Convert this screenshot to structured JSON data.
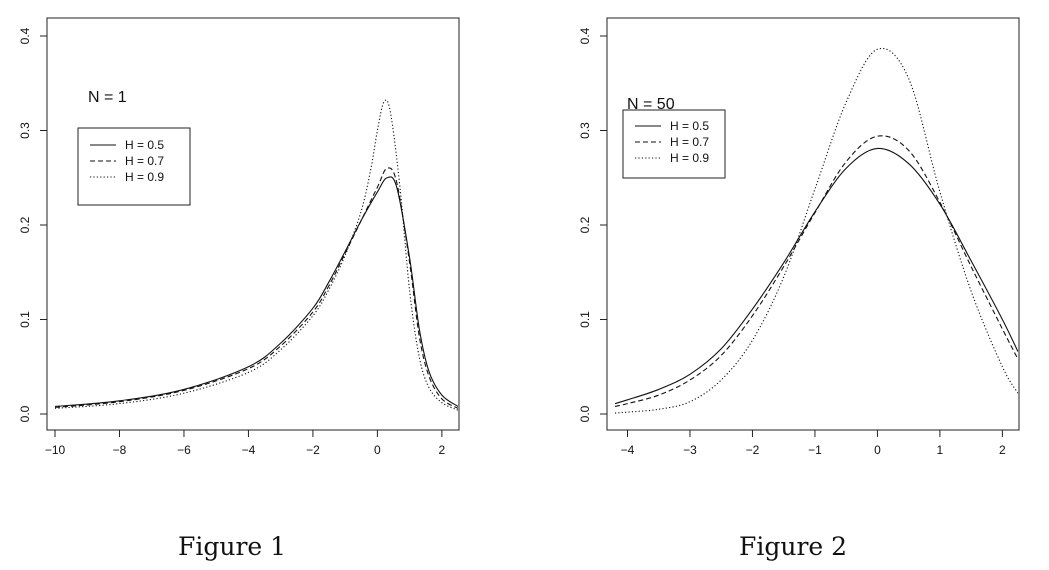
{
  "chart_data": [
    {
      "type": "line",
      "caption": "Figure 1",
      "annotation": "N = 1",
      "xlim": [
        -10,
        2.5
      ],
      "ylim": [
        0,
        0.4
      ],
      "xticks": [
        -10,
        -8,
        -6,
        -4,
        -2,
        0,
        2
      ],
      "yticks": [
        0.0,
        0.1,
        0.2,
        0.3,
        0.4
      ],
      "xtick_labels": [
        "−10",
        "−8",
        "−6",
        "−4",
        "−2",
        "0",
        "2"
      ],
      "ytick_labels": [
        "0.0",
        "0.1",
        "0.2",
        "0.3",
        "0.4"
      ],
      "legend_position": "top-left",
      "series": [
        {
          "name": "H = 0.5",
          "style": "solid",
          "x": [
            -10,
            -8,
            -6,
            -4,
            -3,
            -2,
            -1.5,
            -1,
            -0.5,
            0,
            0.3,
            0.6,
            1,
            1.3,
            1.6,
            2,
            2.5
          ],
          "y": [
            0.008,
            0.014,
            0.026,
            0.05,
            0.075,
            0.112,
            0.14,
            0.172,
            0.205,
            0.235,
            0.25,
            0.24,
            0.165,
            0.09,
            0.045,
            0.02,
            0.008
          ]
        },
        {
          "name": "H = 0.7",
          "style": "dashed",
          "x": [
            -10,
            -8,
            -6,
            -4,
            -3,
            -2,
            -1.5,
            -1,
            -0.5,
            0,
            0.3,
            0.6,
            1,
            1.3,
            1.6,
            2,
            2.5
          ],
          "y": [
            0.007,
            0.013,
            0.025,
            0.048,
            0.072,
            0.108,
            0.136,
            0.17,
            0.205,
            0.24,
            0.26,
            0.245,
            0.16,
            0.082,
            0.04,
            0.016,
            0.006
          ]
        },
        {
          "name": "H = 0.9",
          "style": "dotted",
          "x": [
            -10,
            -8,
            -6,
            -4,
            -3,
            -2,
            -1.5,
            -1,
            -0.5,
            -0.2,
            0,
            0.2,
            0.4,
            0.7,
            1,
            1.3,
            1.6,
            2,
            2.5
          ],
          "y": [
            0.006,
            0.011,
            0.022,
            0.044,
            0.068,
            0.104,
            0.132,
            0.168,
            0.215,
            0.26,
            0.3,
            0.33,
            0.32,
            0.24,
            0.13,
            0.06,
            0.028,
            0.012,
            0.004
          ]
        }
      ]
    },
    {
      "type": "line",
      "caption": "Figure 2",
      "annotation": "N = 50",
      "xlim": [
        -4.2,
        2.25
      ],
      "ylim": [
        0,
        0.4
      ],
      "xticks": [
        -4,
        -3,
        -2,
        -1,
        0,
        1,
        2
      ],
      "yticks": [
        0.0,
        0.1,
        0.2,
        0.3,
        0.4
      ],
      "xtick_labels": [
        "−4",
        "−3",
        "−2",
        "−1",
        "0",
        "1",
        "2"
      ],
      "ytick_labels": [
        "0.0",
        "0.1",
        "0.2",
        "0.3",
        "0.4"
      ],
      "legend_position": "top-left",
      "series": [
        {
          "name": "H = 0.5",
          "style": "solid",
          "x": [
            -4.2,
            -4,
            -3.5,
            -3,
            -2.5,
            -2,
            -1.5,
            -1,
            -0.5,
            0,
            0.5,
            1,
            1.5,
            2,
            2.25
          ],
          "y": [
            0.011,
            0.015,
            0.026,
            0.042,
            0.069,
            0.111,
            0.16,
            0.214,
            0.26,
            0.281,
            0.265,
            0.222,
            0.162,
            0.1,
            0.066
          ]
        },
        {
          "name": "H = 0.7",
          "style": "dashed",
          "x": [
            -4.2,
            -4,
            -3.5,
            -3,
            -2.5,
            -2,
            -1.5,
            -1,
            -0.5,
            0,
            0.5,
            1,
            1.5,
            2,
            2.25
          ],
          "y": [
            0.008,
            0.011,
            0.02,
            0.036,
            0.062,
            0.104,
            0.156,
            0.213,
            0.267,
            0.294,
            0.279,
            0.224,
            0.156,
            0.09,
            0.058
          ]
        },
        {
          "name": "H = 0.9",
          "style": "dotted",
          "x": [
            -4.2,
            -4,
            -3.5,
            -3,
            -2.5,
            -2,
            -1.5,
            -1,
            -0.5,
            0,
            0.5,
            1,
            1.5,
            2,
            2.25
          ],
          "y": [
            0.001,
            0.002,
            0.005,
            0.013,
            0.036,
            0.078,
            0.145,
            0.238,
            0.33,
            0.386,
            0.355,
            0.235,
            0.13,
            0.05,
            0.022
          ]
        }
      ]
    }
  ]
}
